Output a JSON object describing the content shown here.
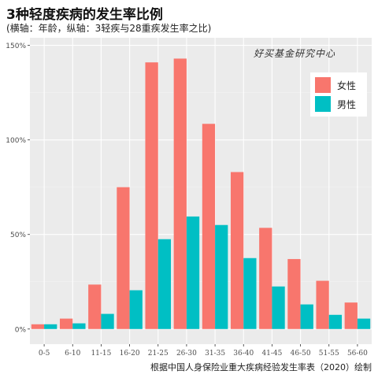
{
  "chart_data": {
    "type": "bar",
    "title": "3种轻度疾病的发生率比例",
    "subtitle": "(横轴：年龄，纵轴：3轻疾与28重疾发生率之比)",
    "caption": "根据中国人身保险业重大疾病经验发生率表（2020）绘制",
    "watermark": "好买基金研究中心",
    "categories": [
      "0-5",
      "6-10",
      "11-15",
      "16-20",
      "21-25",
      "26-30",
      "31-35",
      "36-40",
      "41-45",
      "46-50",
      "51-55",
      "56-60"
    ],
    "series": [
      {
        "name": "女性",
        "color": "#F8766D",
        "values": [
          2.5,
          5.5,
          23.5,
          75,
          141,
          143,
          108.5,
          83,
          53.5,
          37,
          25.5,
          14
        ]
      },
      {
        "name": "男性",
        "color": "#00BFC4",
        "values": [
          2.5,
          3,
          8,
          20.5,
          47.5,
          59.5,
          55,
          37.5,
          22.5,
          13,
          7.5,
          5.5
        ]
      }
    ],
    "ylim": [
      -8,
      154
    ],
    "yticks": [
      0,
      50,
      100,
      150
    ],
    "ytick_labels": [
      "0%",
      "50%",
      "100%",
      "150%"
    ],
    "grid": true,
    "legend_position": "top-right",
    "panel_background": "#EBEBEB"
  }
}
